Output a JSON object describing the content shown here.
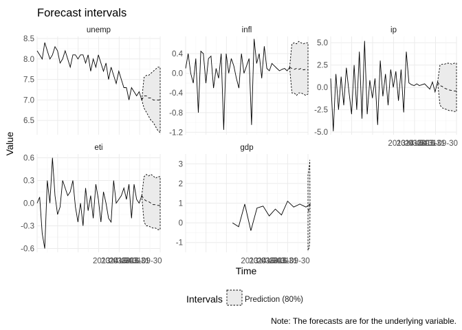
{
  "chart_data": {
    "type": "line",
    "title": "Forecast intervals",
    "xlabel": "Time",
    "ylabel": "Value",
    "caption": "Note: The forecasts are for the underlying variable.",
    "legend": {
      "title": "Intervals",
      "entries": [
        "Prediction (80%)"
      ],
      "placement": "bottom"
    },
    "x_tick_labels": [
      "2013-03-31",
      "2014-03-31",
      "2015-03-31",
      "2016-09-30"
    ],
    "x_tick_positions": [
      37,
      41,
      45,
      51
    ],
    "x_range": [
      0,
      60
    ],
    "forecast_start": 51,
    "panels": [
      {
        "name": "unemp",
        "ylim": [
          6.15,
          8.55
        ],
        "yticks": [
          6.5,
          7.0,
          7.5,
          8.0,
          8.5
        ],
        "ytick_labels": [
          "6.5",
          "7.0",
          "7.5",
          "8.0",
          "8.5"
        ],
        "history": [
          8.2,
          8.1,
          8.0,
          8.4,
          8.2,
          8.0,
          8.1,
          8.3,
          8.2,
          7.9,
          8.0,
          8.2,
          8.0,
          7.8,
          8.1,
          8.1,
          8.0,
          8.1,
          8.1,
          7.9,
          8.1,
          7.7,
          8.0,
          7.8,
          8.1,
          7.9,
          7.7,
          7.9,
          7.5,
          7.8,
          7.6,
          7.4,
          7.7,
          7.5,
          7.3,
          7.3,
          7.0,
          7.3,
          7.2,
          7.1,
          7.2,
          7.0
        ],
        "forecast_mean": [
          7.0,
          7.1,
          7.1,
          7.05,
          7.05,
          7.0,
          7.0,
          7.0,
          7.0
        ],
        "forecast_lower": [
          7.0,
          6.8,
          6.7,
          6.6,
          6.5,
          6.45,
          6.35,
          6.25,
          6.2
        ],
        "forecast_upper": [
          7.0,
          7.55,
          7.6,
          7.6,
          7.65,
          7.7,
          7.75,
          7.8,
          7.8
        ]
      },
      {
        "name": "infl",
        "ylim": [
          -1.25,
          0.75
        ],
        "yticks": [
          -1.2,
          -0.8,
          -0.4,
          0.0,
          0.4
        ],
        "ytick_labels": [
          "-1.2",
          "-0.8",
          "-0.4",
          "0.0",
          "0.4"
        ],
        "history": [
          0.1,
          0.4,
          0.0,
          -0.2,
          0.3,
          -0.8,
          0.45,
          0.4,
          -0.2,
          0.3,
          0.35,
          -0.3,
          0.1,
          -0.1,
          0.4,
          -1.15,
          0.4,
          0.0,
          0.3,
          0.15,
          -0.1,
          -0.3,
          0.4,
          0.0,
          0.15,
          0.3,
          -1.05,
          0.7,
          0.2,
          0.4,
          -0.1,
          0.55,
          0.1,
          0.05,
          0.2,
          0.15,
          0.1,
          0.05,
          0.08,
          0.1,
          0.05,
          0.12
        ],
        "forecast_mean": [
          0.12,
          0.1,
          0.08,
          0.1,
          0.08,
          0.1,
          0.07,
          0.08,
          0.07
        ],
        "forecast_lower": [
          0.12,
          -0.4,
          -0.4,
          -0.45,
          -0.4,
          -0.4,
          -0.42,
          -0.45,
          -0.42
        ],
        "forecast_upper": [
          0.12,
          0.6,
          0.62,
          0.6,
          0.65,
          0.62,
          0.6,
          0.62,
          0.62
        ]
      },
      {
        "name": "ip",
        "ylim": [
          -5.3,
          5.7
        ],
        "yticks": [
          -5.0,
          -2.5,
          0.0,
          2.5,
          5.0
        ],
        "ytick_labels": [
          "-5.0",
          "-2.5",
          "0.0",
          "2.5",
          "5.0"
        ],
        "history": [
          1.0,
          -4.9,
          1.5,
          -2.5,
          1.2,
          -2.0,
          2.2,
          -0.5,
          -3.0,
          2.5,
          -2.5,
          4.0,
          -3.5,
          5.2,
          -3.0,
          0.8,
          -1.2,
          1.0,
          -4.2,
          3.0,
          -1.0,
          1.5,
          -2.0,
          2.0,
          0.0,
          1.8,
          -1.5,
          2.0,
          -2.8,
          4.0,
          0.5,
          0.3,
          0.2,
          0.4,
          0.2,
          0.3,
          0.4,
          0.1,
          -0.2,
          0.6,
          -0.5,
          0.6
        ],
        "forecast_mean": [
          0.6,
          0.2,
          0.1,
          -0.1,
          -0.2,
          -0.3,
          -0.35,
          -0.4,
          -0.4
        ],
        "forecast_lower": [
          0.6,
          -2.0,
          -2.3,
          -2.4,
          -2.5,
          -2.6,
          -2.6,
          -2.7,
          -2.7
        ],
        "forecast_upper": [
          0.6,
          2.5,
          2.6,
          2.6,
          2.7,
          2.7,
          2.6,
          2.7,
          2.7
        ]
      },
      {
        "name": "eti",
        "ylim": [
          -0.65,
          0.65
        ],
        "yticks": [
          -0.6,
          -0.3,
          0.0,
          0.3,
          0.6
        ],
        "ytick_labels": [
          "-0.6",
          "-0.3",
          "0.0",
          "0.3",
          "0.6"
        ],
        "history": [
          0.0,
          0.08,
          -0.4,
          -0.6,
          0.3,
          0.0,
          0.6,
          0.1,
          -0.15,
          -0.05,
          0.3,
          0.2,
          0.1,
          0.15,
          0.3,
          -0.05,
          -0.25,
          0.0,
          -0.3,
          0.2,
          -0.1,
          0.1,
          -0.2,
          0.25,
          0.05,
          -0.25,
          0.15,
          0.0,
          -0.2,
          -0.25,
          0.3,
          0.0,
          0.05,
          0.1,
          0.2,
          0.05,
          0.25,
          -0.2,
          0.25,
          0.05,
          0.0,
          0.1
        ],
        "forecast_mean": [
          0.1,
          0.05,
          0.03,
          0.02,
          0.0,
          -0.02,
          -0.02,
          -0.03,
          -0.03
        ],
        "forecast_lower": [
          0.1,
          -0.25,
          -0.3,
          -0.3,
          -0.32,
          -0.33,
          -0.33,
          -0.35,
          -0.35
        ],
        "forecast_upper": [
          0.1,
          0.35,
          0.38,
          0.36,
          0.38,
          0.36,
          0.33,
          0.35,
          0.35
        ]
      },
      {
        "name": "gdp",
        "ylim": [
          -1.5,
          3.5
        ],
        "yticks": [
          -1,
          0,
          1,
          2,
          3
        ],
        "ytick_labels": [
          "-1",
          "0",
          "1",
          "2",
          "3"
        ],
        "history": [
          0.0,
          -0.2,
          0.95,
          -0.4,
          0.75,
          0.85,
          0.35,
          0.7,
          0.4,
          1.1,
          0.8,
          0.95,
          0.8,
          0.95
        ],
        "history_x": [
          23,
          26,
          29,
          32,
          35,
          38,
          41,
          44,
          47,
          50,
          53,
          56,
          59,
          61
        ],
        "forecast_x_start": 61,
        "forecast_mean": [
          0.95,
          0.9,
          0.8,
          0.75,
          0.7,
          0.65,
          0.6,
          0.55,
          0.5
        ],
        "forecast_lower": [
          0.95,
          -0.9,
          -1.1,
          -1.2,
          -1.3,
          -1.3,
          -1.35,
          -1.4,
          -1.4
        ],
        "forecast_upper": [
          0.95,
          3.2,
          3.0,
          2.9,
          2.8,
          2.7,
          2.6,
          2.55,
          2.5
        ]
      }
    ]
  }
}
